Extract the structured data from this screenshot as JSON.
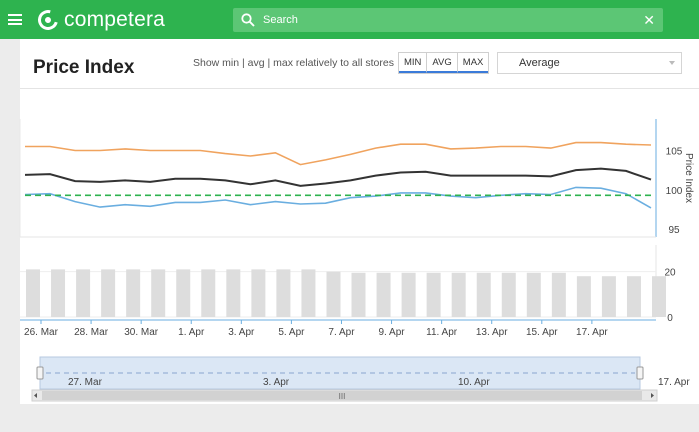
{
  "topbar": {
    "brand": "competera",
    "search_placeholder": "Search",
    "clear_glyph": "✕",
    "color": "#2eb34f"
  },
  "header": {
    "title": "Price Index",
    "hint": "Show min | avg | max relatively to all stores",
    "modes": [
      "MIN",
      "AVG",
      "MAX"
    ],
    "dropdown_value": "Average"
  },
  "chart_data": [
    {
      "type": "line",
      "ylabel": "Price Index",
      "yticks": [
        95,
        100,
        105
      ],
      "ylim": [
        94,
        109
      ],
      "series": [
        {
          "color": "#f0a35e",
          "values": [
            105.5,
            105.5,
            105,
            105,
            105.2,
            105,
            105,
            105,
            104.6,
            104.3,
            104.7,
            103.2,
            103.8,
            104.5,
            105.3,
            105.8,
            105.8,
            105.2,
            105.3,
            105.5,
            105.5,
            105.3,
            106,
            106,
            105.8,
            105.7
          ]
        },
        {
          "color": "#333333",
          "values": [
            101.9,
            102,
            101.1,
            101,
            101.2,
            101,
            101.4,
            101.4,
            101.2,
            100.7,
            101.2,
            100.5,
            100.8,
            101.2,
            101.8,
            102.2,
            102.3,
            101.8,
            101.8,
            101.8,
            101.8,
            101.7,
            102.5,
            102.7,
            102.4,
            101.3
          ]
        },
        {
          "color": "#6aaee0",
          "values": [
            99.4,
            99.5,
            98.5,
            97.8,
            98.1,
            97.9,
            98.4,
            98.4,
            98.7,
            98.1,
            98.5,
            98.2,
            98.3,
            99,
            99.2,
            99.6,
            99.6,
            99.2,
            99,
            99.3,
            99.5,
            99.4,
            100.3,
            100.2,
            99.5,
            97.7
          ]
        },
        {
          "color": "#2eb34f",
          "dashed": true,
          "values": [
            99.3,
            99.3,
            99.3,
            99.3,
            99.3,
            99.3,
            99.3,
            99.3,
            99.3,
            99.3,
            99.3,
            99.3,
            99.3,
            99.3,
            99.3,
            99.3,
            99.3,
            99.3,
            99.3,
            99.3,
            99.3,
            99.3,
            99.3,
            99.3,
            99.3,
            99.3
          ]
        }
      ]
    },
    {
      "type": "bar",
      "yticks": [
        0,
        20
      ],
      "ylim": [
        0,
        30
      ],
      "values": [
        21,
        21,
        21,
        21,
        21,
        21,
        21,
        21,
        21,
        21,
        21,
        21,
        20,
        19.5,
        19.5,
        19.5,
        19.5,
        19.5,
        19.5,
        19.5,
        19.5,
        19.5,
        18,
        18,
        18,
        18
      ],
      "color": "#dddddd"
    }
  ],
  "x_axis": {
    "labels": [
      "26. Mar",
      "28. Mar",
      "30. Mar",
      "1. Apr",
      "3. Apr",
      "5. Apr",
      "7. Apr",
      "9. Apr",
      "11. Apr",
      "13. Apr",
      "15. Apr",
      "17. Apr"
    ]
  },
  "navigator": {
    "labels": [
      "27. Mar",
      "3. Apr",
      "10. Apr",
      "17. Apr"
    ],
    "scroll_grip": "III"
  }
}
